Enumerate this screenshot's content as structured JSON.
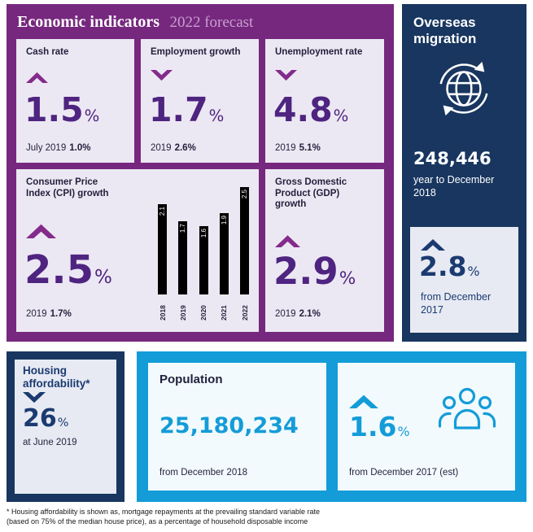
{
  "colors": {
    "purple_panel": "#76287E",
    "purple_card_bg": "#ECE8F3",
    "purple_number": "#4E2480",
    "purple_chevron": "#842B8C",
    "purple_subtitle": "#C99FD0",
    "navy_panel": "#18365F",
    "navy_text": "#1B3A70",
    "light_card_bg": "#E7EAF3",
    "cyan": "#149CD8",
    "blue_card_bg": "#F2FAFD",
    "bar_black": "#000000"
  },
  "economic": {
    "title": "Economic indicators",
    "subtitle": "2022 forecast",
    "cards": [
      {
        "title": "Cash rate",
        "direction": "up",
        "value": "1.5",
        "unit": "%",
        "footer_label": "July 2019",
        "footer_value": "1.0%"
      },
      {
        "title": "Employment growth",
        "direction": "down",
        "value": "1.7",
        "unit": "%",
        "footer_label": "2019",
        "footer_value": "2.6%"
      },
      {
        "title": "Unemployment rate",
        "direction": "down",
        "value": "4.8",
        "unit": "%",
        "footer_label": "2019",
        "footer_value": "5.1%"
      },
      {
        "title": "Consumer Price Index (CPI) growth",
        "direction": "up",
        "value": "2.5",
        "unit": "%",
        "footer_label": "2019",
        "footer_value": "1.7%"
      },
      {
        "title": "Gross Domestic Product (GDP) growth",
        "direction": "up",
        "value": "2.9",
        "unit": "%",
        "footer_label": "2019",
        "footer_value": "2.1%"
      }
    ]
  },
  "chart_data": {
    "type": "bar",
    "title": "Consumer Price Index (CPI) growth, 2022 forecast",
    "categories": [
      "2018",
      "2019",
      "2020",
      "2021",
      "2022"
    ],
    "values": [
      2.1,
      1.7,
      1.6,
      1.9,
      2.5
    ],
    "ylim": [
      0,
      2.5
    ],
    "bar_color": "#000000",
    "value_label_color": "#ffffff",
    "grid": "off",
    "legend": "none"
  },
  "overseas": {
    "title": "Overseas migration",
    "value": "248,446",
    "period": "year to December 2018",
    "change": {
      "direction": "up",
      "value": "2.8",
      "unit": "%",
      "period": "from December 2017"
    }
  },
  "housing": {
    "title": "Housing affordability*",
    "direction": "down",
    "value": "26",
    "unit": "%",
    "period": "at June 2019"
  },
  "population": {
    "title": "Population",
    "value": "25,180,234",
    "period": "from December 2018"
  },
  "growth": {
    "direction": "up",
    "value": "1.6",
    "unit": "%",
    "period": "from December 2017 (est)"
  },
  "footnote": {
    "line1": "* Housing affordability is shown as, mortgage repayments at the prevailing standard variable rate",
    "line2": "(based on 75% of the median house price), as a percentage of household disposable income"
  }
}
